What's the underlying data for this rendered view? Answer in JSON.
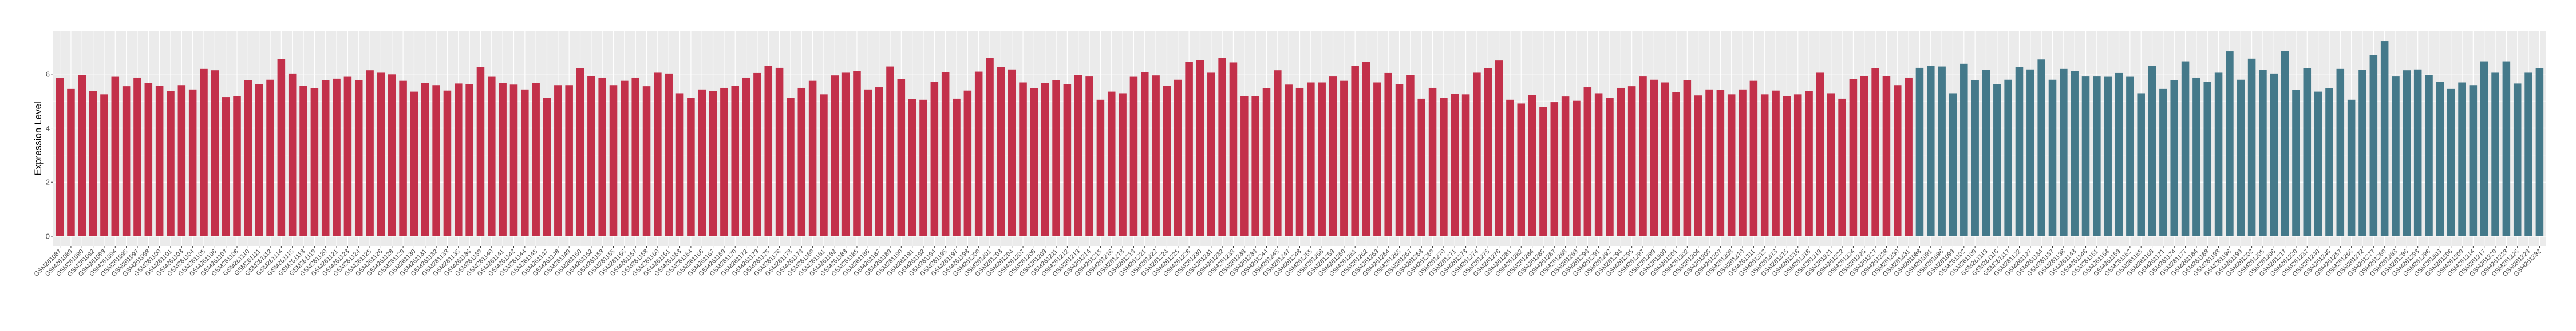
{
  "chart_data": {
    "type": "bar",
    "title": "",
    "xlabel": "",
    "ylabel": "Expression Level",
    "ylim": [
      -0.36,
      7.58
    ],
    "yticks": [
      "0",
      "2",
      "4",
      "6"
    ],
    "grid": true,
    "legend": "none",
    "background": "#EBEBEB",
    "series": [
      {
        "color": "#C3304A",
        "categories": [
          "GSM261087",
          "GSM261089",
          "GSM261090",
          "GSM261092",
          "GSM261093",
          "GSM261094",
          "GSM261095",
          "GSM261097",
          "GSM261098",
          "GSM261100",
          "GSM261101",
          "GSM261103",
          "GSM261104",
          "GSM261105",
          "GSM261106",
          "GSM261107",
          "GSM261108",
          "GSM261110",
          "GSM261111",
          "GSM261112",
          "GSM261114",
          "GSM261115",
          "GSM261118",
          "GSM261119",
          "GSM261120",
          "GSM261121",
          "GSM261123",
          "GSM261124",
          "GSM261125",
          "GSM261126",
          "GSM261128",
          "GSM261129",
          "GSM261130",
          "GSM261131",
          "GSM261132",
          "GSM261133",
          "GSM261135",
          "GSM261136",
          "GSM261139",
          "GSM261140",
          "GSM261141",
          "GSM261142",
          "GSM261144",
          "GSM261145",
          "GSM261147",
          "GSM261148",
          "GSM261149",
          "GSM261150",
          "GSM261152",
          "GSM261153",
          "GSM261155",
          "GSM261156",
          "GSM261157",
          "GSM261158",
          "GSM261160",
          "GSM261161",
          "GSM261163",
          "GSM261164",
          "GSM261166",
          "GSM261167",
          "GSM261169",
          "GSM261170",
          "GSM261172",
          "GSM261173",
          "GSM261175",
          "GSM261176",
          "GSM261178",
          "GSM261179",
          "GSM261180",
          "GSM261181",
          "GSM261182",
          "GSM261183",
          "GSM261185",
          "GSM261186",
          "GSM261187",
          "GSM261189",
          "GSM261190",
          "GSM261191",
          "GSM261192",
          "GSM261194",
          "GSM261195",
          "GSM261197",
          "GSM261198",
          "GSM261200",
          "GSM261201",
          "GSM261203",
          "GSM261204",
          "GSM261207",
          "GSM261208",
          "GSM261209",
          "GSM261211",
          "GSM261212",
          "GSM261213",
          "GSM261214",
          "GSM261215",
          "GSM261216",
          "GSM261218",
          "GSM261219",
          "GSM261221",
          "GSM261222",
          "GSM261224",
          "GSM261225",
          "GSM261228",
          "GSM261230",
          "GSM261231",
          "GSM261232",
          "GSM261233",
          "GSM261238",
          "GSM261239",
          "GSM261244",
          "GSM261245",
          "GSM261247",
          "GSM261248",
          "GSM261255",
          "GSM261258",
          "GSM261259",
          "GSM261260",
          "GSM261261",
          "GSM261262",
          "GSM261263",
          "GSM261264",
          "GSM261265",
          "GSM261267",
          "GSM261268",
          "GSM261269",
          "GSM261270",
          "GSM261271",
          "GSM261273",
          "GSM261274",
          "GSM261275",
          "GSM261276",
          "GSM261281",
          "GSM261282",
          "GSM261284",
          "GSM261285",
          "GSM261287",
          "GSM261288",
          "GSM261289",
          "GSM261290",
          "GSM261291",
          "GSM261292",
          "GSM261294",
          "GSM261295",
          "GSM261297",
          "GSM261299",
          "GSM261300",
          "GSM261301",
          "GSM261302",
          "GSM261304",
          "GSM261305",
          "GSM261307",
          "GSM261308",
          "GSM261310",
          "GSM261311",
          "GSM261312",
          "GSM261313",
          "GSM261315",
          "GSM261316",
          "GSM261318",
          "GSM261319",
          "GSM261321",
          "GSM261322",
          "GSM261324",
          "GSM261325",
          "GSM261327",
          "GSM261328",
          "GSM261330",
          "GSM261331"
        ],
        "values": [
          5.85,
          5.45,
          5.97,
          5.37,
          5.25,
          5.9,
          5.55,
          5.87,
          5.67,
          5.57,
          5.37,
          5.59,
          5.43,
          6.19,
          6.14,
          5.15,
          5.19,
          5.77,
          5.63,
          5.79,
          6.56,
          6.02,
          5.57,
          5.47,
          5.77,
          5.83,
          5.9,
          5.77,
          6.14,
          6.05,
          5.99,
          5.75,
          5.35,
          5.67,
          5.59,
          5.39,
          5.65,
          5.63,
          6.26,
          5.9,
          5.67,
          5.61,
          5.43,
          5.67,
          5.13,
          5.59,
          5.59,
          6.21,
          5.93,
          5.87,
          5.59,
          5.75,
          5.87,
          5.55,
          6.05,
          6.02,
          5.29,
          5.11,
          5.43,
          5.37,
          5.49,
          5.57,
          5.87,
          6.04,
          6.31,
          6.23,
          5.13,
          5.49,
          5.75,
          5.25,
          5.95,
          6.05,
          6.11,
          5.43,
          5.51,
          6.28,
          5.81,
          5.07,
          5.05,
          5.71,
          6.07,
          5.09,
          5.39,
          6.09,
          6.59,
          6.26,
          6.17,
          5.69,
          5.47,
          5.67,
          5.77,
          5.63,
          5.97,
          5.91,
          5.05,
          5.35,
          5.29,
          5.9,
          6.07,
          5.95,
          5.57,
          5.79,
          6.45,
          6.52,
          6.05,
          6.59,
          6.43,
          5.19,
          5.19,
          5.47,
          6.14,
          5.61,
          5.49,
          5.69,
          5.69,
          5.91,
          5.75,
          6.31,
          6.44,
          5.69,
          6.04,
          5.63,
          5.97,
          5.09,
          5.49,
          5.13,
          5.27,
          5.25,
          6.05,
          6.21,
          6.5,
          5.05,
          4.91,
          5.23,
          4.79,
          4.96,
          5.17,
          5.01,
          5.51,
          5.29,
          5.13,
          5.49,
          5.55,
          5.91,
          5.79,
          5.69,
          5.33,
          5.77,
          5.21,
          5.43,
          5.41,
          5.25,
          5.43,
          5.75,
          5.25,
          5.39,
          5.19,
          5.25,
          5.37,
          6.05,
          5.29,
          5.09,
          5.81,
          5.93,
          6.21,
          5.93,
          5.59,
          5.87
        ]
      },
      {
        "color": "#44798A",
        "categories": [
          "GSM261088",
          "GSM261091",
          "GSM261096",
          "GSM261099",
          "GSM261102",
          "GSM261109",
          "GSM261113",
          "GSM261116",
          "GSM261117",
          "GSM261122",
          "GSM261127",
          "GSM261134",
          "GSM261137",
          "GSM261138",
          "GSM261143",
          "GSM261146",
          "GSM261151",
          "GSM261154",
          "GSM261159",
          "GSM261162",
          "GSM261165",
          "GSM261168",
          "GSM261171",
          "GSM261174",
          "GSM261177",
          "GSM261184",
          "GSM261188",
          "GSM261193",
          "GSM261196",
          "GSM261199",
          "GSM261202",
          "GSM261205",
          "GSM261206",
          "GSM261217",
          "GSM261220",
          "GSM261237",
          "GSM261240",
          "GSM261246",
          "GSM261257",
          "GSM261266",
          "GSM261272",
          "GSM261277",
          "GSM261280",
          "GSM261283",
          "GSM261286",
          "GSM261293",
          "GSM261296",
          "GSM261303",
          "GSM261306",
          "GSM261309",
          "GSM261314",
          "GSM261317",
          "GSM261320",
          "GSM261323",
          "GSM261326",
          "GSM261329",
          "GSM261332"
        ],
        "values": [
          6.23,
          6.3,
          6.28,
          5.29,
          6.38,
          5.77,
          6.16,
          5.63,
          5.79,
          6.26,
          6.17,
          6.54,
          5.79,
          6.19,
          6.11,
          5.91,
          5.91,
          5.9,
          6.04,
          5.9,
          5.29,
          6.31,
          5.45,
          5.77,
          6.47,
          5.87,
          5.71,
          6.05,
          6.84,
          5.79,
          6.57,
          6.16,
          6.02,
          6.85,
          5.41,
          6.21,
          5.35,
          5.47,
          6.19,
          5.05,
          6.16,
          6.71,
          7.22,
          5.91,
          6.14,
          6.17,
          5.97,
          5.71,
          5.45,
          5.69,
          5.59,
          6.47,
          6.05,
          6.47,
          5.65,
          6.05,
          6.21
        ]
      }
    ]
  }
}
